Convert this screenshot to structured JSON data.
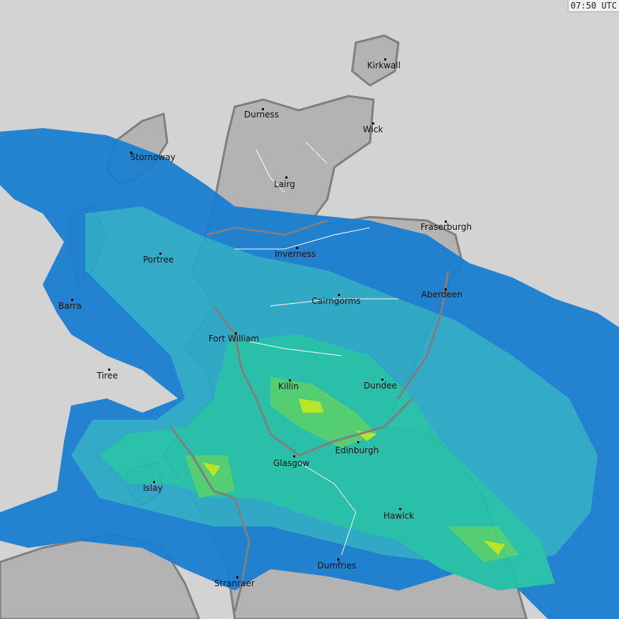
{
  "timestamp": "07:50 UTC",
  "colors": {
    "sea": "#d3d3d3",
    "land": "#b3b3b3",
    "coast": "#7f7f7f",
    "rivers": "#ffffff",
    "radar_light": "#1a7fd0",
    "radar_mid": "#2aa8c8",
    "radar_teal": "#22c0a8",
    "radar_green": "#50d070",
    "radar_yellow": "#b8e820"
  },
  "cities": [
    "Kirkwall",
    "Durness",
    "Wick",
    "Stornoway",
    "Lairg",
    "Fraserburgh",
    "Inverness",
    "Portree",
    "Aberdeen",
    "Barra",
    "Cairngorms",
    "Fort William",
    "Tiree",
    "Killin",
    "Dundee",
    "Edinburgh",
    "Glasgow",
    "Islay",
    "Hawick",
    "Dumfries",
    "Stranraer"
  ]
}
